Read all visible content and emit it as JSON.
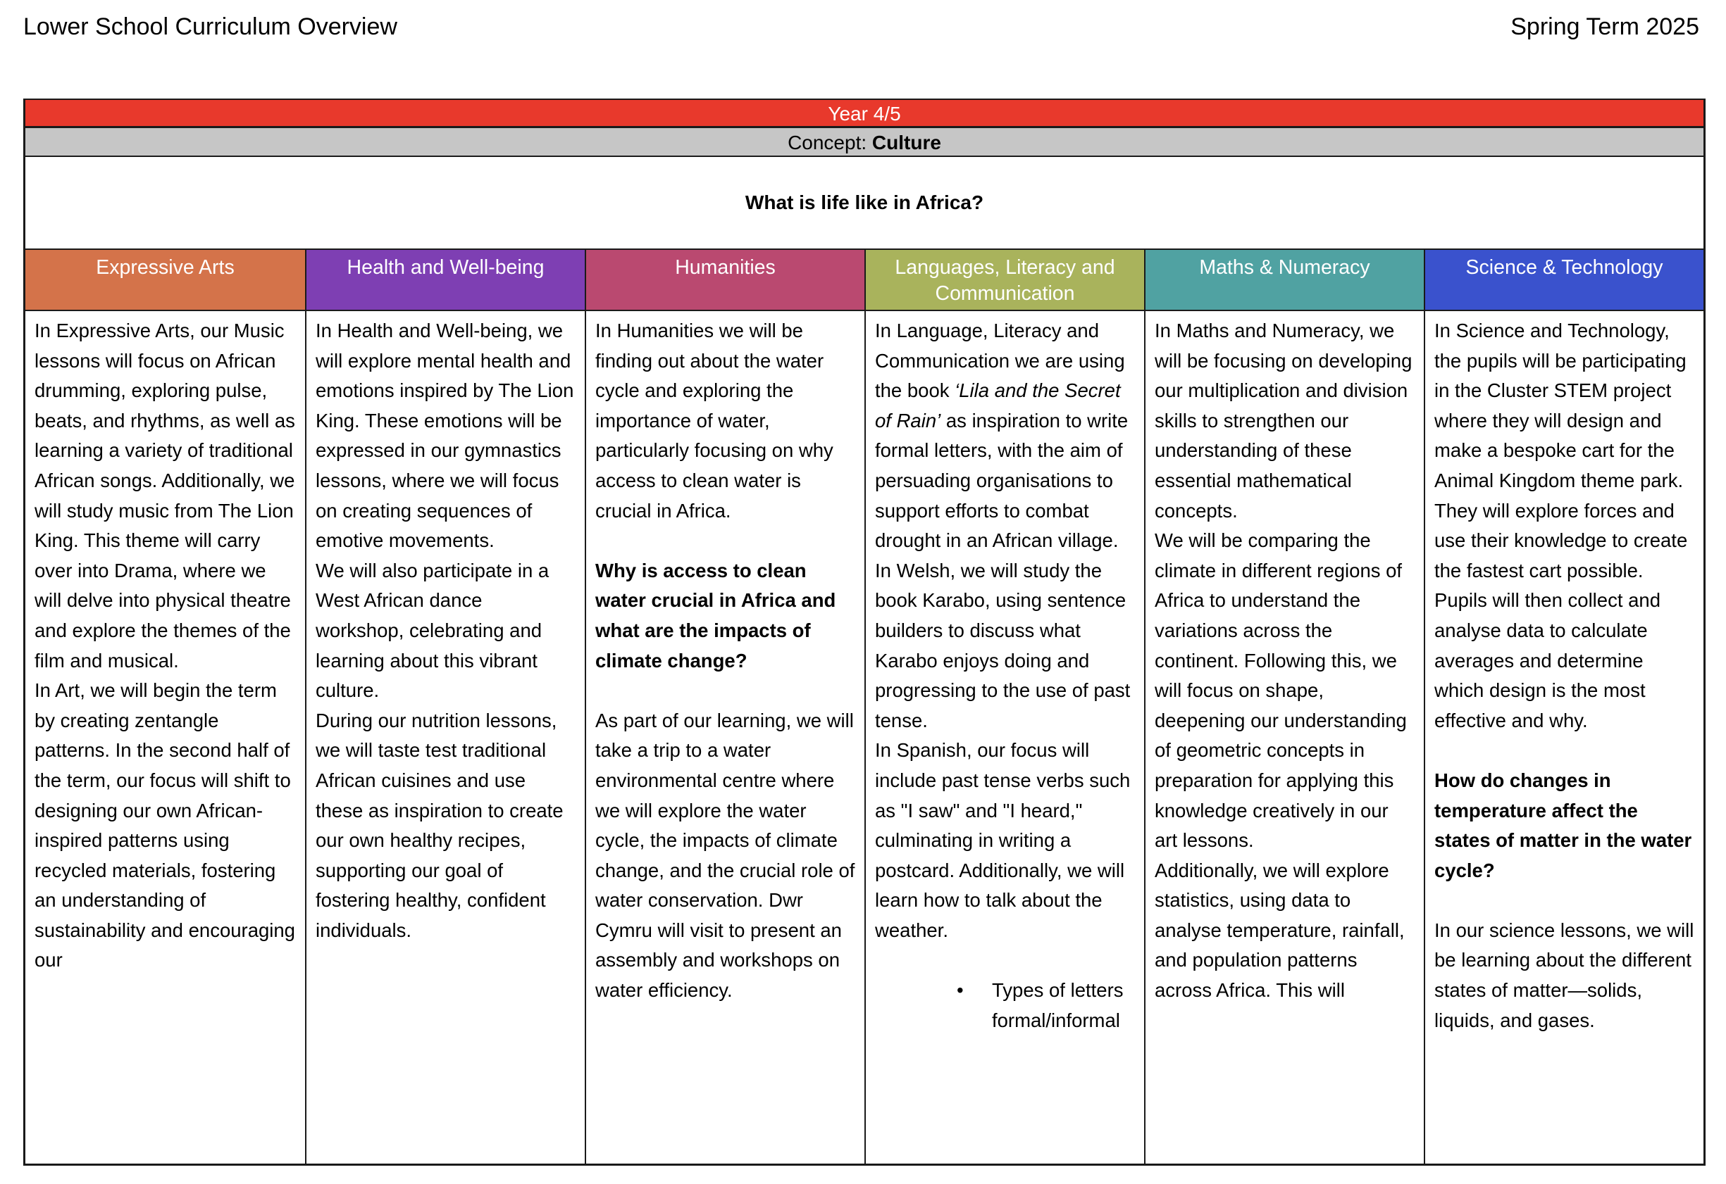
{
  "page": {
    "title": "Lower School Curriculum Overview",
    "term": "Spring Term 2025"
  },
  "banner": {
    "year_label": "Year 4/5",
    "year_color": "#E8392C",
    "concept_prefix": "Concept: ",
    "concept_value": "Culture",
    "concept_bg": "#C6C6C6",
    "question": "What is life like in Africa?"
  },
  "bullet_glyph": "•",
  "columns": [
    {
      "label": "Expressive Arts",
      "color": "#D4734A",
      "paragraphs": [
        {
          "runs": [
            {
              "t": "In Expressive Arts, our Music lessons will focus on African drumming, exploring pulse, beats, and rhythms, as well as learning a variety of traditional African songs. Additionally, we will study music from The Lion King. This theme will carry over into Drama, where we will delve into physical theatre and explore the themes of the film and musical."
            }
          ]
        },
        {
          "runs": [
            {
              "t": "In Art, we will begin the term by creating zentangle patterns. In the second half of the term, our focus will shift to designing our own African-inspired patterns using recycled materials, fostering an understanding of sustainability and encouraging our"
            }
          ]
        }
      ]
    },
    {
      "label": "Health and Well-being",
      "color": "#7E3FB3",
      "paragraphs": [
        {
          "runs": [
            {
              "t": "In Health and Well-being, we will explore mental health and emotions inspired by The Lion King. These emotions will be expressed in our gymnastics lessons, where we will focus on creating sequences of emotive movements."
            }
          ]
        },
        {
          "runs": [
            {
              "t": "We will also participate in a West African dance workshop, celebrating and learning about this vibrant culture."
            }
          ]
        },
        {
          "runs": [
            {
              "t": "During our nutrition lessons, we will taste test traditional African cuisines and use these as inspiration to create our own healthy recipes, supporting our goal of fostering healthy, confident individuals."
            }
          ]
        }
      ]
    },
    {
      "label": "Humanities",
      "color": "#BA4970",
      "paragraphs": [
        {
          "runs": [
            {
              "t": "In Humanities we will be finding out about the water cycle and exploring the importance of water, particularly focusing on why access to clean water is crucial in Africa."
            }
          ]
        },
        {
          "gap": true,
          "runs": [
            {
              "t": "Why is access to clean water crucial in Africa and what are the impacts of climate change?",
              "b": true
            }
          ]
        },
        {
          "gap": true,
          "runs": [
            {
              "t": "As part of our learning, we will take a trip to a water environmental centre where we will explore the water cycle, the impacts of climate change, and the crucial role of water conservation. Dwr Cymru will visit to present an assembly and workshops on water efficiency."
            }
          ]
        }
      ]
    },
    {
      "label": "Languages, Literacy and Communication",
      "color": "#A9B35C",
      "paragraphs": [
        {
          "runs": [
            {
              "t": "In Language, Literacy and Communication we are using the book "
            },
            {
              "t": "‘Lila and the Secret of Rain’",
              "i": true
            },
            {
              "t": " as inspiration to write formal letters, with the aim of persuading organisations to support efforts to combat drought in an African village."
            }
          ]
        },
        {
          "runs": [
            {
              "t": "In Welsh, we will study the book Karabo, using sentence builders to discuss what Karabo enjoys doing and progressing to the use of past tense."
            }
          ]
        },
        {
          "runs": [
            {
              "t": "In Spanish, our focus will include past tense verbs such as \"I saw\" and \"I heard,\" culminating in writing a postcard. Additionally, we will learn how to talk about the weather."
            }
          ]
        },
        {
          "gap": true,
          "bullet": true,
          "runs": [
            {
              "t": "Types of letters formal/informal"
            }
          ]
        }
      ]
    },
    {
      "label": "Maths & Numeracy",
      "color": "#50A2A2",
      "paragraphs": [
        {
          "runs": [
            {
              "t": "In Maths and Numeracy, we will be focusing on developing our multiplication and division skills to strengthen our understanding of these essential mathematical concepts."
            }
          ]
        },
        {
          "runs": [
            {
              "t": "We will be comparing the climate in different regions of Africa to understand the variations across the continent. Following this, we will focus on shape, deepening our understanding of geometric concepts in preparation for applying this knowledge creatively in our art lessons."
            }
          ]
        },
        {
          "runs": [
            {
              "t": "Additionally, we will explore statistics, using data to analyse temperature, rainfall, and population patterns across Africa. This will"
            }
          ]
        }
      ]
    },
    {
      "label": "Science & Technology",
      "color": "#3A52CD",
      "paragraphs": [
        {
          "runs": [
            {
              "t": "In Science and Technology, the pupils will be participating in the Cluster STEM project where they will design and make a bespoke cart for the Animal Kingdom theme park. They will explore forces and use their knowledge to create the fastest cart possible. Pupils will then collect and analyse data to calculate averages and determine which design is the most effective and why."
            }
          ]
        },
        {
          "gap": true,
          "runs": [
            {
              "t": "How do changes in temperature affect the states of matter in the water cycle?",
              "b": true
            }
          ]
        },
        {
          "gap": true,
          "runs": [
            {
              "t": "In our science lessons, we will be learning about the different states of matter—solids, liquids, and gases."
            }
          ]
        }
      ]
    }
  ]
}
